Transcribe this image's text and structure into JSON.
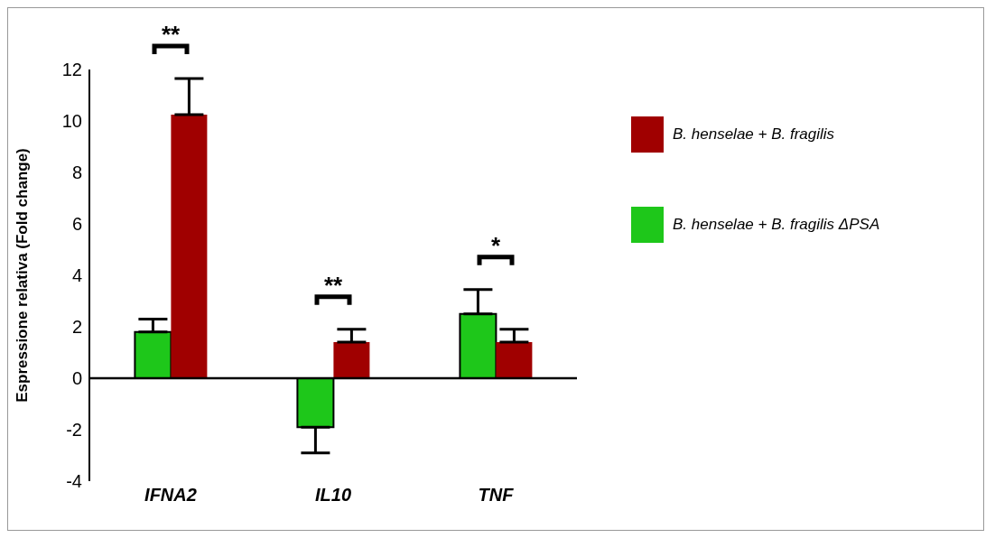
{
  "chart_data": {
    "type": "bar",
    "ylabel": "Espressione relativa (Fold change)",
    "categories": [
      "IFNA2",
      "IL10",
      "TNF"
    ],
    "series": [
      {
        "name": "B. henselae + B. fragilis ΔPSA",
        "color": "#1ec71a",
        "values": [
          1.8,
          -1.9,
          2.5
        ],
        "errors": [
          [
            1.8,
            2.3
          ],
          [
            -2.9,
            -1.9
          ],
          [
            2.5,
            3.45
          ]
        ]
      },
      {
        "name": "B. henselae + B. fragilis",
        "color": "#a00000",
        "values": [
          10.25,
          1.4,
          1.4
        ],
        "errors": [
          [
            10.25,
            11.65
          ],
          [
            1.4,
            1.9
          ],
          [
            1.4,
            1.9
          ]
        ]
      }
    ],
    "ylim": [
      -4,
      12
    ],
    "yticks": [
      -4,
      -2,
      0,
      2,
      4,
      6,
      8,
      10,
      12
    ],
    "grid": false,
    "legend": "right",
    "ref_lines": [
      {
        "axis": "y",
        "value": 0,
        "color": "#000000"
      }
    ],
    "annotations": [
      "**",
      "**",
      "*"
    ]
  }
}
